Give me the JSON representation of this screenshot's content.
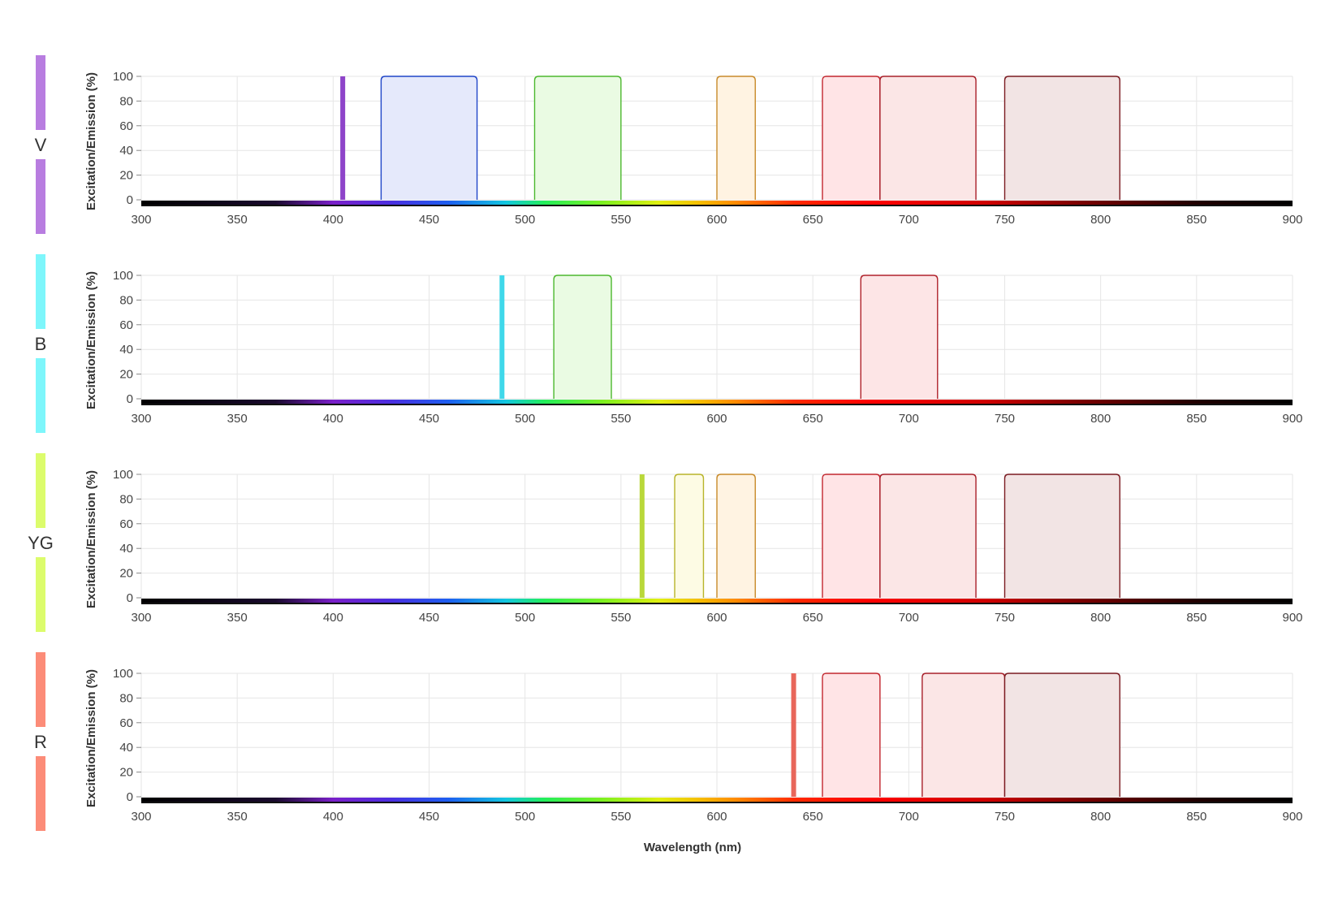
{
  "chart_data": {
    "type": "area",
    "x_axis": {
      "title": "Wavelength (nm)",
      "range": [
        300,
        900
      ],
      "ticks": [
        300,
        350,
        400,
        450,
        500,
        550,
        600,
        650,
        700,
        750,
        800,
        850,
        900
      ]
    },
    "y_axis": {
      "title": "Excitation/Emission (%)",
      "range": [
        0,
        100
      ],
      "ticks": [
        0,
        20,
        40,
        60,
        80,
        100
      ]
    },
    "grid": true,
    "panels": [
      {
        "laser": "V",
        "laser_color": "#b87de0",
        "laser_line": {
          "wavelength": 405,
          "color": "#8e44c9"
        },
        "filters": [
          {
            "range": [
              425,
              475
            ],
            "stroke": "#1f45c8",
            "fill": "#e5e9fb"
          },
          {
            "range": [
              505,
              550
            ],
            "stroke": "#4cb82e",
            "fill": "#eafbe3"
          },
          {
            "range": [
              600,
              620
            ],
            "stroke": "#c88a2a",
            "fill": "#fff3e2"
          },
          {
            "range": [
              655,
              685
            ],
            "stroke": "#c2262e",
            "fill": "#ffe4e6"
          },
          {
            "range": [
              685,
              735
            ],
            "stroke": "#a8202a",
            "fill": "#fbe6e6"
          },
          {
            "range": [
              750,
              810
            ],
            "stroke": "#7a1a20",
            "fill": "#f2e4e4"
          }
        ]
      },
      {
        "laser": "B",
        "laser_color": "#7ef6fb",
        "laser_line": {
          "wavelength": 488,
          "color": "#3fd8ea"
        },
        "filters": [
          {
            "range": [
              515,
              545
            ],
            "stroke": "#4cb82e",
            "fill": "#eafbe3"
          },
          {
            "range": [
              675,
              715
            ],
            "stroke": "#b0222b",
            "fill": "#fde5e6"
          }
        ]
      },
      {
        "laser": "YG",
        "laser_color": "#dcfc6c",
        "laser_line": {
          "wavelength": 561,
          "color": "#b9d83a"
        },
        "filters": [
          {
            "range": [
              578,
              593
            ],
            "stroke": "#b8b42a",
            "fill": "#fdfbe4"
          },
          {
            "range": [
              600,
              620
            ],
            "stroke": "#c88a2a",
            "fill": "#fff3e2"
          },
          {
            "range": [
              655,
              685
            ],
            "stroke": "#c2262e",
            "fill": "#ffe4e6"
          },
          {
            "range": [
              685,
              735
            ],
            "stroke": "#a8202a",
            "fill": "#fbe6e6"
          },
          {
            "range": [
              750,
              810
            ],
            "stroke": "#7a1a20",
            "fill": "#f2e4e4"
          }
        ]
      },
      {
        "laser": "R",
        "laser_color": "#fc8c78",
        "laser_line": {
          "wavelength": 640,
          "color": "#e8665a"
        },
        "filters": [
          {
            "range": [
              655,
              685
            ],
            "stroke": "#c2262e",
            "fill": "#ffe4e6"
          },
          {
            "range": [
              707,
              750
            ],
            "stroke": "#a8202a",
            "fill": "#fbe6e6"
          },
          {
            "range": [
              750,
              810
            ],
            "stroke": "#7a1a20",
            "fill": "#f2e4e4"
          }
        ]
      }
    ]
  }
}
